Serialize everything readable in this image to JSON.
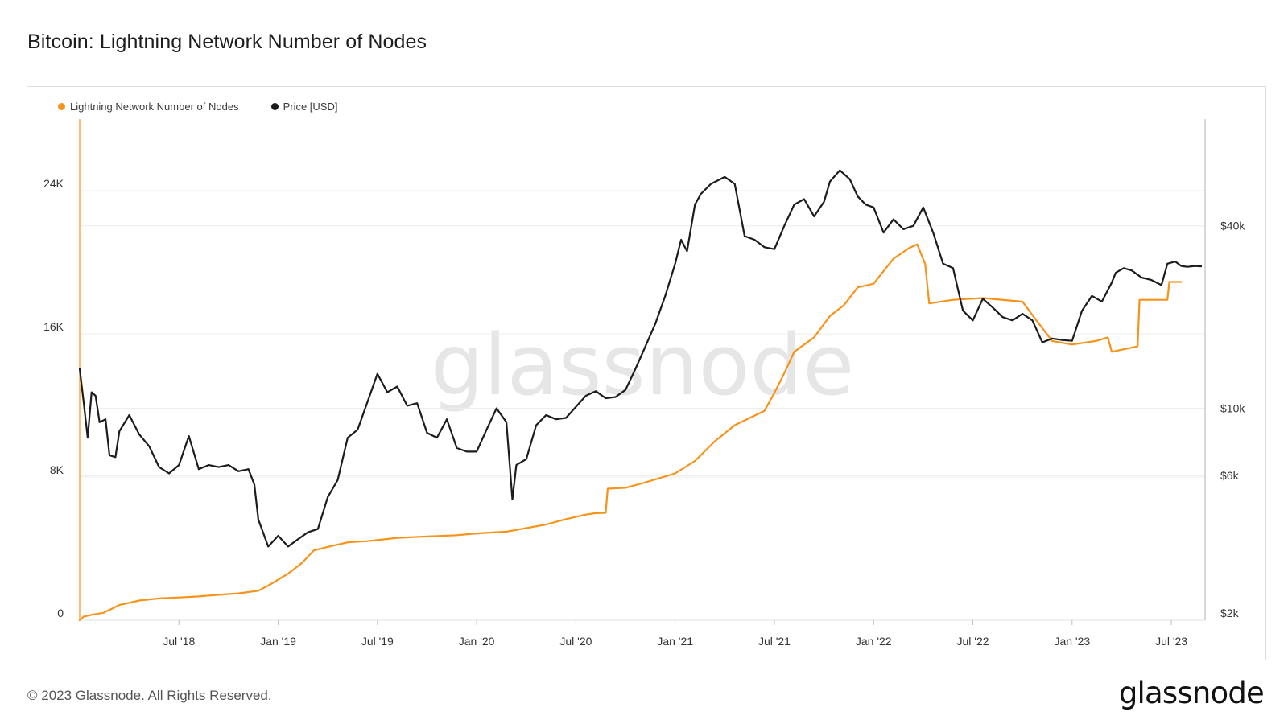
{
  "header": {
    "title": "Bitcoin: Lightning Network Number of Nodes"
  },
  "footer": {
    "copyright": "© 2023 Glassnode. All Rights Reserved.",
    "logo": "glassnode"
  },
  "colors": {
    "nodes": "#f7931a",
    "price": "#1c1c1c",
    "grid": "#ececec",
    "axis": "#bdbdbd"
  },
  "chart_data": {
    "type": "line",
    "title": "Bitcoin: Lightning Network Number of Nodes",
    "watermark": "glassnode",
    "legend": [
      {
        "name": "Lightning Network Number of Nodes",
        "color": "#f7931a"
      },
      {
        "name": "Price [USD]",
        "color": "#1c1c1c"
      }
    ],
    "x_axis": {
      "range": [
        2018.0,
        2023.67
      ],
      "ticks": [
        {
          "label": "Jul '18",
          "t": 2018.5
        },
        {
          "label": "Jan '19",
          "t": 2019.0
        },
        {
          "label": "Jul '19",
          "t": 2019.5
        },
        {
          "label": "Jan '20",
          "t": 2020.0
        },
        {
          "label": "Jul '20",
          "t": 2020.5
        },
        {
          "label": "Jan '21",
          "t": 2021.0
        },
        {
          "label": "Jul '21",
          "t": 2021.5
        },
        {
          "label": "Jan '22",
          "t": 2022.0
        },
        {
          "label": "Jul '22",
          "t": 2022.5
        },
        {
          "label": "Jan '23",
          "t": 2023.0
        },
        {
          "label": "Jul '23",
          "t": 2023.5
        }
      ]
    },
    "y_left": {
      "label": "Lightning Network Number of Nodes",
      "range": [
        0,
        28000
      ],
      "ticks": [
        {
          "label": "0",
          "v": 0
        },
        {
          "label": "8K",
          "v": 8000
        },
        {
          "label": "16K",
          "v": 16000
        },
        {
          "label": "24K",
          "v": 24000
        }
      ]
    },
    "y_right": {
      "label": "Price [USD]",
      "scale": "log",
      "range": [
        2000,
        90000
      ],
      "ticks": [
        {
          "label": "$2k",
          "v": 2000
        },
        {
          "label": "$6k",
          "v": 6000
        },
        {
          "label": "$10k",
          "v": 10000
        },
        {
          "label": "$40k",
          "v": 40000
        }
      ]
    },
    "series": [
      {
        "name": "Lightning Network Number of Nodes",
        "axis": "left",
        "points": [
          [
            2018.0,
            0
          ],
          [
            2018.02,
            200
          ],
          [
            2018.06,
            300
          ],
          [
            2018.12,
            420
          ],
          [
            2018.2,
            850
          ],
          [
            2018.3,
            1100
          ],
          [
            2018.4,
            1220
          ],
          [
            2018.5,
            1270
          ],
          [
            2018.6,
            1330
          ],
          [
            2018.7,
            1420
          ],
          [
            2018.8,
            1500
          ],
          [
            2018.9,
            1650
          ],
          [
            2018.96,
            2000
          ],
          [
            2019.05,
            2600
          ],
          [
            2019.12,
            3200
          ],
          [
            2019.18,
            3900
          ],
          [
            2019.25,
            4100
          ],
          [
            2019.35,
            4350
          ],
          [
            2019.45,
            4420
          ],
          [
            2019.6,
            4600
          ],
          [
            2019.75,
            4680
          ],
          [
            2019.9,
            4750
          ],
          [
            2020.0,
            4850
          ],
          [
            2020.15,
            4950
          ],
          [
            2020.25,
            5150
          ],
          [
            2020.35,
            5350
          ],
          [
            2020.45,
            5650
          ],
          [
            2020.55,
            5900
          ],
          [
            2020.6,
            5980
          ],
          [
            2020.65,
            6000
          ],
          [
            2020.66,
            7350
          ],
          [
            2020.75,
            7400
          ],
          [
            2020.85,
            7700
          ],
          [
            2021.0,
            8200
          ],
          [
            2021.1,
            8900
          ],
          [
            2021.2,
            10000
          ],
          [
            2021.3,
            10900
          ],
          [
            2021.45,
            11700
          ],
          [
            2021.5,
            12700
          ],
          [
            2021.55,
            13800
          ],
          [
            2021.6,
            15000
          ],
          [
            2021.7,
            15800
          ],
          [
            2021.78,
            17000
          ],
          [
            2021.85,
            17600
          ],
          [
            2021.92,
            18600
          ],
          [
            2022.0,
            18800
          ],
          [
            2022.05,
            19500
          ],
          [
            2022.1,
            20200
          ],
          [
            2022.18,
            20800
          ],
          [
            2022.22,
            21000
          ],
          [
            2022.26,
            19900
          ],
          [
            2022.28,
            17700
          ],
          [
            2022.4,
            17900
          ],
          [
            2022.55,
            18000
          ],
          [
            2022.75,
            17800
          ],
          [
            2022.81,
            16900
          ],
          [
            2022.9,
            15600
          ],
          [
            2023.0,
            15400
          ],
          [
            2023.12,
            15600
          ],
          [
            2023.18,
            15800
          ],
          [
            2023.2,
            15000
          ],
          [
            2023.33,
            15300
          ],
          [
            2023.34,
            17900
          ],
          [
            2023.48,
            17900
          ],
          [
            2023.49,
            18900
          ],
          [
            2023.55,
            18900
          ]
        ]
      },
      {
        "name": "Price [USD]",
        "axis": "right",
        "points": [
          [
            2018.0,
            13500
          ],
          [
            2018.02,
            10500
          ],
          [
            2018.04,
            8000
          ],
          [
            2018.06,
            11300
          ],
          [
            2018.08,
            11000
          ],
          [
            2018.1,
            9000
          ],
          [
            2018.13,
            9200
          ],
          [
            2018.15,
            7000
          ],
          [
            2018.18,
            6900
          ],
          [
            2018.2,
            8400
          ],
          [
            2018.25,
            9500
          ],
          [
            2018.3,
            8200
          ],
          [
            2018.35,
            7500
          ],
          [
            2018.4,
            6400
          ],
          [
            2018.45,
            6100
          ],
          [
            2018.5,
            6500
          ],
          [
            2018.55,
            8100
          ],
          [
            2018.6,
            6300
          ],
          [
            2018.65,
            6500
          ],
          [
            2018.7,
            6400
          ],
          [
            2018.75,
            6500
          ],
          [
            2018.8,
            6200
          ],
          [
            2018.85,
            6300
          ],
          [
            2018.88,
            5600
          ],
          [
            2018.9,
            4300
          ],
          [
            2018.95,
            3500
          ],
          [
            2019.0,
            3800
          ],
          [
            2019.05,
            3500
          ],
          [
            2019.1,
            3700
          ],
          [
            2019.15,
            3900
          ],
          [
            2019.2,
            4000
          ],
          [
            2019.25,
            5100
          ],
          [
            2019.3,
            5800
          ],
          [
            2019.35,
            8000
          ],
          [
            2019.4,
            8500
          ],
          [
            2019.45,
            10500
          ],
          [
            2019.5,
            13000
          ],
          [
            2019.55,
            11300
          ],
          [
            2019.6,
            11800
          ],
          [
            2019.65,
            10200
          ],
          [
            2019.7,
            10400
          ],
          [
            2019.75,
            8300
          ],
          [
            2019.8,
            8000
          ],
          [
            2019.85,
            9200
          ],
          [
            2019.9,
            7400
          ],
          [
            2019.95,
            7200
          ],
          [
            2020.0,
            7200
          ],
          [
            2020.05,
            8500
          ],
          [
            2020.1,
            10000
          ],
          [
            2020.15,
            9000
          ],
          [
            2020.18,
            5000
          ],
          [
            2020.2,
            6500
          ],
          [
            2020.25,
            6800
          ],
          [
            2020.3,
            8800
          ],
          [
            2020.35,
            9500
          ],
          [
            2020.4,
            9200
          ],
          [
            2020.45,
            9300
          ],
          [
            2020.55,
            11000
          ],
          [
            2020.6,
            11400
          ],
          [
            2020.65,
            10800
          ],
          [
            2020.7,
            10900
          ],
          [
            2020.75,
            11500
          ],
          [
            2020.8,
            13500
          ],
          [
            2020.85,
            16000
          ],
          [
            2020.9,
            19000
          ],
          [
            2020.95,
            23500
          ],
          [
            2021.0,
            30000
          ],
          [
            2021.03,
            36000
          ],
          [
            2021.06,
            33000
          ],
          [
            2021.1,
            47000
          ],
          [
            2021.13,
            51000
          ],
          [
            2021.18,
            55000
          ],
          [
            2021.25,
            58000
          ],
          [
            2021.3,
            55000
          ],
          [
            2021.35,
            37000
          ],
          [
            2021.4,
            36000
          ],
          [
            2021.45,
            34000
          ],
          [
            2021.5,
            33500
          ],
          [
            2021.55,
            40000
          ],
          [
            2021.6,
            47000
          ],
          [
            2021.65,
            49000
          ],
          [
            2021.7,
            43000
          ],
          [
            2021.75,
            48000
          ],
          [
            2021.78,
            56000
          ],
          [
            2021.83,
            61000
          ],
          [
            2021.88,
            57000
          ],
          [
            2021.92,
            50000
          ],
          [
            2021.96,
            47000
          ],
          [
            2022.0,
            46000
          ],
          [
            2022.05,
            38000
          ],
          [
            2022.1,
            42000
          ],
          [
            2022.15,
            39000
          ],
          [
            2022.2,
            40000
          ],
          [
            2022.25,
            46000
          ],
          [
            2022.3,
            38000
          ],
          [
            2022.35,
            30000
          ],
          [
            2022.4,
            29000
          ],
          [
            2022.45,
            21000
          ],
          [
            2022.5,
            19500
          ],
          [
            2022.55,
            23000
          ],
          [
            2022.6,
            21500
          ],
          [
            2022.65,
            20000
          ],
          [
            2022.7,
            19500
          ],
          [
            2022.75,
            20500
          ],
          [
            2022.8,
            19500
          ],
          [
            2022.85,
            16500
          ],
          [
            2022.9,
            17000
          ],
          [
            2022.95,
            16800
          ],
          [
            2023.0,
            16700
          ],
          [
            2023.05,
            21000
          ],
          [
            2023.1,
            23500
          ],
          [
            2023.15,
            22500
          ],
          [
            2023.2,
            26000
          ],
          [
            2023.22,
            28000
          ],
          [
            2023.26,
            29000
          ],
          [
            2023.3,
            28500
          ],
          [
            2023.35,
            27000
          ],
          [
            2023.4,
            26500
          ],
          [
            2023.45,
            25500
          ],
          [
            2023.48,
            30000
          ],
          [
            2023.52,
            30500
          ],
          [
            2023.55,
            29500
          ],
          [
            2023.58,
            29300
          ],
          [
            2023.62,
            29500
          ],
          [
            2023.65,
            29400
          ]
        ]
      }
    ]
  }
}
